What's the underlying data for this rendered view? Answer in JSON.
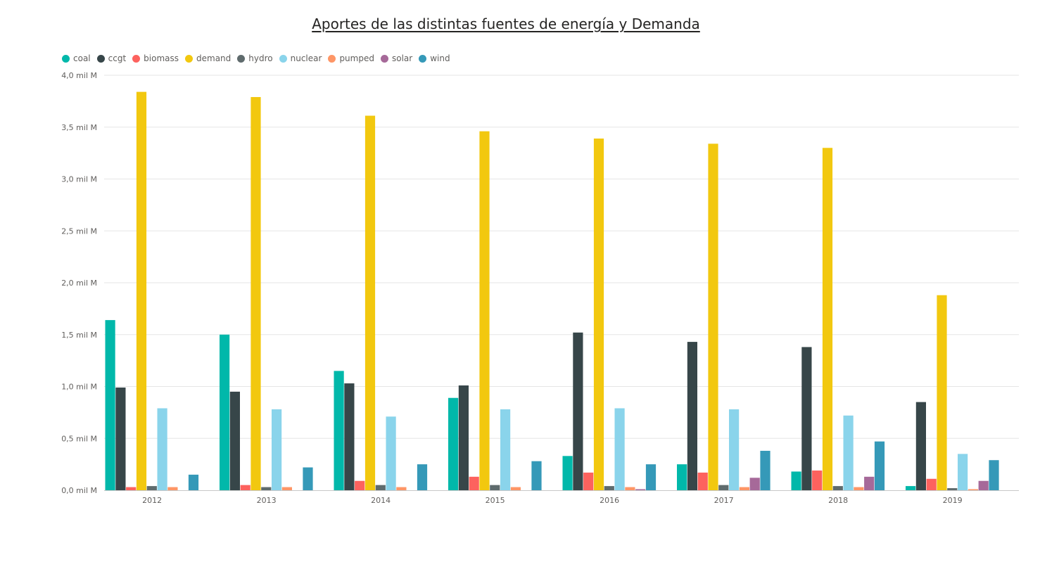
{
  "chart_data": {
    "type": "bar",
    "title": "Aportes de las distintas fuentes de energía y Demanda",
    "xlabel": "",
    "ylabel": "",
    "categories": [
      "2012",
      "2013",
      "2014",
      "2015",
      "2016",
      "2017",
      "2018",
      "2019"
    ],
    "ylim": [
      0,
      4.0
    ],
    "yticks": [
      0,
      0.5,
      1.0,
      1.5,
      2.0,
      2.5,
      3.0,
      3.5,
      4.0
    ],
    "ytick_labels": [
      "0,0 mil M",
      "0,5 mil M",
      "1,0 mil M",
      "1,5 mil M",
      "2,0 mil M",
      "2,5 mil M",
      "3,0 mil M",
      "3,5 mil M",
      "4,0 mil M"
    ],
    "grid": true,
    "legend_position": "top-left",
    "series": [
      {
        "name": "coal",
        "color": "#01B8AA",
        "values": [
          1.64,
          1.5,
          1.15,
          0.89,
          0.33,
          0.25,
          0.18,
          0.04
        ]
      },
      {
        "name": "ccgt",
        "color": "#374649",
        "values": [
          0.99,
          0.95,
          1.03,
          1.01,
          1.52,
          1.43,
          1.38,
          0.85
        ]
      },
      {
        "name": "biomass",
        "color": "#FD625E",
        "values": [
          0.03,
          0.05,
          0.09,
          0.13,
          0.17,
          0.17,
          0.19,
          0.11
        ]
      },
      {
        "name": "demand",
        "color": "#F2C80F",
        "values": [
          3.84,
          3.79,
          3.61,
          3.46,
          3.39,
          3.34,
          3.3,
          1.88
        ]
      },
      {
        "name": "hydro",
        "color": "#5F6B6D",
        "values": [
          0.04,
          0.03,
          0.05,
          0.05,
          0.04,
          0.05,
          0.04,
          0.02
        ]
      },
      {
        "name": "nuclear",
        "color": "#8AD4EB",
        "values": [
          0.79,
          0.78,
          0.71,
          0.78,
          0.79,
          0.78,
          0.72,
          0.35
        ]
      },
      {
        "name": "pumped",
        "color": "#FE9666",
        "values": [
          0.03,
          0.03,
          0.03,
          0.03,
          0.03,
          0.03,
          0.03,
          0.01
        ]
      },
      {
        "name": "solar",
        "color": "#A66999",
        "values": [
          0.0,
          0.0,
          0.0,
          0.0,
          0.01,
          0.12,
          0.13,
          0.09
        ]
      },
      {
        "name": "wind",
        "color": "#3599B8",
        "values": [
          0.15,
          0.22,
          0.25,
          0.28,
          0.25,
          0.38,
          0.47,
          0.29
        ]
      }
    ]
  }
}
